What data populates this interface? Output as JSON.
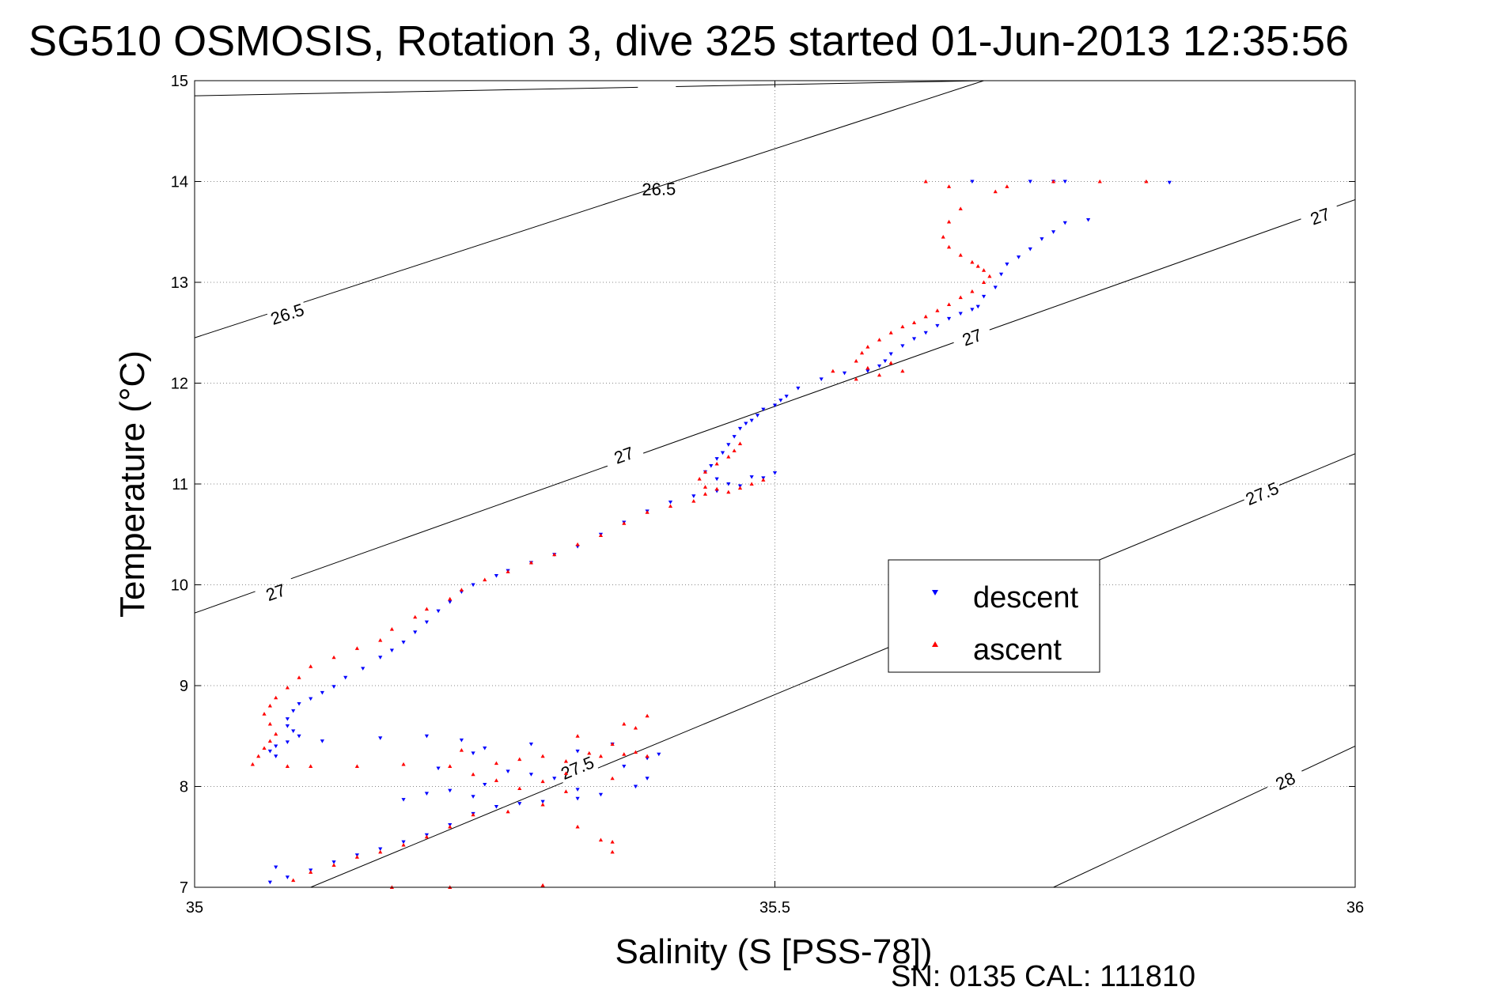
{
  "chart_data": {
    "type": "scatter",
    "title": "SG510 OSMOSIS, Rotation 3, dive 325 started 01-Jun-2013 12:35:56",
    "xlabel": "Salinity (S [PSS-78])",
    "ylabel": "Temperature (°C)",
    "xlim": [
      35,
      36
    ],
    "ylim": [
      7,
      15
    ],
    "x_ticks": [
      35,
      35.5,
      36
    ],
    "x_tick_labels": [
      "35",
      "35.5",
      "36"
    ],
    "y_ticks": [
      7,
      8,
      9,
      10,
      11,
      12,
      13,
      14,
      15
    ],
    "y_tick_labels": [
      "7",
      "8",
      "9",
      "10",
      "11",
      "12",
      "13",
      "14",
      "15"
    ],
    "grid": true,
    "legend_position": "center-right",
    "density_contours": [
      {
        "label": "26.5",
        "line": [
          [
            35,
            14.85
          ],
          [
            35.68,
            15.0
          ]
        ],
        "label_points": [
          [
            35.4,
            13.92
          ]
        ]
      },
      {
        "label": "26.5",
        "line": [
          [
            35,
            12.45
          ],
          [
            35.68,
            15.0
          ]
        ],
        "label_points": [
          [
            35.08,
            12.68
          ]
        ]
      },
      {
        "label": "27",
        "line": [
          [
            35,
            9.72
          ],
          [
            36,
            13.82
          ]
        ],
        "label_points": [
          [
            35.07,
            9.92
          ],
          [
            35.37,
            11.28
          ],
          [
            35.67,
            12.45
          ],
          [
            35.97,
            13.65
          ]
        ]
      },
      {
        "label": "27.5",
        "line": [
          [
            35.1,
            7.0
          ],
          [
            36,
            11.3
          ]
        ],
        "label_points": [
          [
            35.33,
            8.18
          ],
          [
            35.92,
            10.9
          ]
        ]
      },
      {
        "label": "28",
        "line": [
          [
            35.74,
            7.0
          ],
          [
            36,
            8.4
          ]
        ],
        "label_points": [
          [
            35.94,
            8.05
          ]
        ]
      }
    ],
    "series": [
      {
        "name": "descent",
        "color": "#0000ff",
        "marker": "triangle-down",
        "points": [
          [
            35.67,
            14.0
          ],
          [
            35.72,
            14.0
          ],
          [
            35.74,
            14.0
          ],
          [
            35.75,
            14.0
          ],
          [
            35.84,
            13.99
          ],
          [
            35.77,
            13.62
          ],
          [
            35.75,
            13.59
          ],
          [
            35.74,
            13.5
          ],
          [
            35.73,
            13.43
          ],
          [
            35.72,
            13.33
          ],
          [
            35.71,
            13.25
          ],
          [
            35.7,
            13.18
          ],
          [
            35.695,
            13.08
          ],
          [
            35.69,
            12.95
          ],
          [
            35.68,
            12.86
          ],
          [
            35.675,
            12.76
          ],
          [
            35.67,
            12.73
          ],
          [
            35.66,
            12.69
          ],
          [
            35.65,
            12.64
          ],
          [
            35.64,
            12.57
          ],
          [
            35.63,
            12.5
          ],
          [
            35.62,
            12.44
          ],
          [
            35.61,
            12.37
          ],
          [
            35.6,
            12.29
          ],
          [
            35.595,
            12.22
          ],
          [
            35.59,
            12.17
          ],
          [
            35.58,
            12.12
          ],
          [
            35.56,
            12.1
          ],
          [
            35.54,
            12.04
          ],
          [
            35.52,
            11.95
          ],
          [
            35.51,
            11.87
          ],
          [
            35.505,
            11.83
          ],
          [
            35.5,
            11.78
          ],
          [
            35.49,
            11.74
          ],
          [
            35.485,
            11.68
          ],
          [
            35.48,
            11.63
          ],
          [
            35.475,
            11.6
          ],
          [
            35.47,
            11.55
          ],
          [
            35.465,
            11.47
          ],
          [
            35.46,
            11.39
          ],
          [
            35.455,
            11.31
          ],
          [
            35.45,
            11.25
          ],
          [
            35.445,
            11.18
          ],
          [
            35.44,
            11.12
          ],
          [
            35.45,
            11.05
          ],
          [
            35.46,
            11.0
          ],
          [
            35.48,
            11.07
          ],
          [
            35.5,
            11.11
          ],
          [
            35.49,
            11.06
          ],
          [
            35.47,
            10.98
          ],
          [
            35.45,
            10.93
          ],
          [
            35.43,
            10.88
          ],
          [
            35.41,
            10.82
          ],
          [
            35.39,
            10.73
          ],
          [
            35.37,
            10.62
          ],
          [
            35.35,
            10.5
          ],
          [
            35.33,
            10.38
          ],
          [
            35.31,
            10.3
          ],
          [
            35.29,
            10.22
          ],
          [
            35.27,
            10.14
          ],
          [
            35.26,
            10.09
          ],
          [
            35.24,
            10.0
          ],
          [
            35.23,
            9.93
          ],
          [
            35.22,
            9.83
          ],
          [
            35.21,
            9.74
          ],
          [
            35.2,
            9.63
          ],
          [
            35.19,
            9.53
          ],
          [
            35.18,
            9.43
          ],
          [
            35.17,
            9.35
          ],
          [
            35.16,
            9.28
          ],
          [
            35.145,
            9.17
          ],
          [
            35.13,
            9.08
          ],
          [
            35.12,
            8.99
          ],
          [
            35.11,
            8.93
          ],
          [
            35.1,
            8.87
          ],
          [
            35.09,
            8.82
          ],
          [
            35.085,
            8.75
          ],
          [
            35.08,
            8.67
          ],
          [
            35.08,
            8.6
          ],
          [
            35.085,
            8.55
          ],
          [
            35.09,
            8.5
          ],
          [
            35.08,
            8.44
          ],
          [
            35.07,
            8.4
          ],
          [
            35.065,
            8.35
          ],
          [
            35.07,
            8.3
          ],
          [
            35.11,
            8.45
          ],
          [
            35.16,
            8.48
          ],
          [
            35.2,
            8.5
          ],
          [
            35.23,
            8.46
          ],
          [
            35.25,
            8.38
          ],
          [
            35.29,
            8.42
          ],
          [
            35.33,
            8.35
          ],
          [
            35.36,
            8.42
          ],
          [
            35.24,
            8.33
          ],
          [
            35.21,
            8.18
          ],
          [
            35.27,
            8.15
          ],
          [
            35.29,
            8.12
          ],
          [
            35.31,
            8.08
          ],
          [
            35.25,
            8.02
          ],
          [
            35.22,
            7.96
          ],
          [
            35.2,
            7.93
          ],
          [
            35.18,
            7.87
          ],
          [
            35.24,
            7.9
          ],
          [
            35.33,
            7.97
          ],
          [
            35.37,
            8.2
          ],
          [
            35.39,
            8.28
          ],
          [
            35.4,
            8.32
          ],
          [
            35.39,
            8.08
          ],
          [
            35.38,
            8.0
          ],
          [
            35.35,
            7.92
          ],
          [
            35.33,
            7.88
          ],
          [
            35.3,
            7.85
          ],
          [
            35.28,
            7.83
          ],
          [
            35.26,
            7.8
          ],
          [
            35.24,
            7.73
          ],
          [
            35.22,
            7.62
          ],
          [
            35.2,
            7.52
          ],
          [
            35.18,
            7.45
          ],
          [
            35.16,
            7.38
          ],
          [
            35.14,
            7.32
          ],
          [
            35.12,
            7.25
          ],
          [
            35.1,
            7.17
          ],
          [
            35.08,
            7.1
          ],
          [
            35.065,
            7.05
          ],
          [
            35.07,
            7.2
          ]
        ]
      },
      {
        "name": "ascent",
        "color": "#ff0000",
        "marker": "triangle-up",
        "points": [
          [
            35.63,
            14.0
          ],
          [
            35.65,
            13.95
          ],
          [
            35.69,
            13.9
          ],
          [
            35.7,
            13.95
          ],
          [
            35.74,
            14.0
          ],
          [
            35.78,
            14.0
          ],
          [
            35.82,
            14.0
          ],
          [
            35.66,
            13.73
          ],
          [
            35.65,
            13.6
          ],
          [
            35.645,
            13.45
          ],
          [
            35.65,
            13.35
          ],
          [
            35.66,
            13.27
          ],
          [
            35.67,
            13.2
          ],
          [
            35.675,
            13.16
          ],
          [
            35.68,
            13.12
          ],
          [
            35.685,
            13.06
          ],
          [
            35.68,
            13.0
          ],
          [
            35.67,
            12.91
          ],
          [
            35.66,
            12.85
          ],
          [
            35.65,
            12.78
          ],
          [
            35.64,
            12.72
          ],
          [
            35.63,
            12.66
          ],
          [
            35.62,
            12.6
          ],
          [
            35.61,
            12.56
          ],
          [
            35.6,
            12.5
          ],
          [
            35.59,
            12.43
          ],
          [
            35.58,
            12.36
          ],
          [
            35.575,
            12.3
          ],
          [
            35.57,
            12.22
          ],
          [
            35.58,
            12.15
          ],
          [
            35.6,
            12.2
          ],
          [
            35.61,
            12.12
          ],
          [
            35.59,
            12.08
          ],
          [
            35.57,
            12.04
          ],
          [
            35.55,
            12.12
          ],
          [
            35.47,
            11.4
          ],
          [
            35.465,
            11.33
          ],
          [
            35.46,
            11.27
          ],
          [
            35.45,
            11.2
          ],
          [
            35.44,
            11.12
          ],
          [
            35.435,
            11.05
          ],
          [
            35.44,
            10.97
          ],
          [
            35.45,
            10.95
          ],
          [
            35.46,
            10.92
          ],
          [
            35.47,
            10.96
          ],
          [
            35.48,
            11.0
          ],
          [
            35.49,
            11.04
          ],
          [
            35.44,
            10.9
          ],
          [
            35.43,
            10.83
          ],
          [
            35.41,
            10.78
          ],
          [
            35.39,
            10.72
          ],
          [
            35.37,
            10.61
          ],
          [
            35.35,
            10.49
          ],
          [
            35.33,
            10.4
          ],
          [
            35.31,
            10.3
          ],
          [
            35.29,
            10.22
          ],
          [
            35.27,
            10.13
          ],
          [
            35.25,
            10.05
          ],
          [
            35.23,
            9.95
          ],
          [
            35.22,
            9.86
          ],
          [
            35.2,
            9.76
          ],
          [
            35.19,
            9.68
          ],
          [
            35.17,
            9.56
          ],
          [
            35.16,
            9.45
          ],
          [
            35.14,
            9.37
          ],
          [
            35.12,
            9.28
          ],
          [
            35.1,
            9.19
          ],
          [
            35.09,
            9.08
          ],
          [
            35.08,
            8.98
          ],
          [
            35.07,
            8.88
          ],
          [
            35.065,
            8.8
          ],
          [
            35.06,
            8.72
          ],
          [
            35.065,
            8.62
          ],
          [
            35.07,
            8.52
          ],
          [
            35.065,
            8.45
          ],
          [
            35.06,
            8.38
          ],
          [
            35.055,
            8.3
          ],
          [
            35.05,
            8.22
          ],
          [
            35.08,
            8.2
          ],
          [
            35.1,
            8.2
          ],
          [
            35.14,
            8.2
          ],
          [
            35.18,
            8.22
          ],
          [
            35.22,
            8.2
          ],
          [
            35.26,
            8.23
          ],
          [
            35.28,
            8.27
          ],
          [
            35.3,
            8.3
          ],
          [
            35.32,
            8.25
          ],
          [
            35.34,
            8.33
          ],
          [
            35.36,
            8.42
          ],
          [
            35.38,
            8.58
          ],
          [
            35.39,
            8.7
          ],
          [
            35.37,
            8.62
          ],
          [
            35.33,
            8.5
          ],
          [
            35.23,
            8.36
          ],
          [
            35.24,
            8.12
          ],
          [
            35.26,
            8.06
          ],
          [
            35.28,
            7.98
          ],
          [
            35.3,
            8.05
          ],
          [
            35.32,
            8.13
          ],
          [
            35.35,
            8.3
          ],
          [
            35.37,
            8.32
          ],
          [
            35.38,
            8.34
          ],
          [
            35.39,
            8.3
          ],
          [
            35.36,
            8.08
          ],
          [
            35.32,
            7.95
          ],
          [
            35.3,
            7.82
          ],
          [
            35.27,
            7.75
          ],
          [
            35.24,
            7.72
          ],
          [
            35.22,
            7.6
          ],
          [
            35.2,
            7.5
          ],
          [
            35.18,
            7.42
          ],
          [
            35.16,
            7.35
          ],
          [
            35.14,
            7.3
          ],
          [
            35.12,
            7.22
          ],
          [
            35.1,
            7.15
          ],
          [
            35.085,
            7.07
          ],
          [
            35.33,
            7.6
          ],
          [
            35.35,
            7.47
          ],
          [
            35.36,
            7.45
          ],
          [
            35.17,
            7.0
          ],
          [
            35.22,
            7.0
          ],
          [
            35.3,
            7.02
          ],
          [
            35.36,
            7.35
          ]
        ]
      }
    ]
  },
  "legend": {
    "descent_label": "descent",
    "ascent_label": "ascent"
  },
  "footer": {
    "serial_text": "SN: 0135  CAL: 111810"
  },
  "colors": {
    "descent": "#0000ff",
    "ascent": "#ff0000",
    "contour": "#000000",
    "grid": "#888888"
  }
}
